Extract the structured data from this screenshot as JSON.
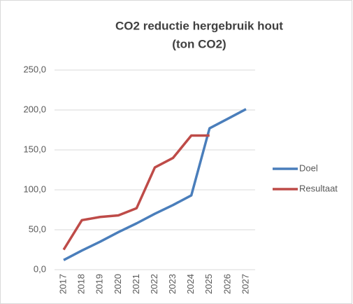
{
  "chart_data": {
    "type": "line",
    "title": [
      "CO2 reductie hergebruik hout",
      "(ton CO2)"
    ],
    "categories": [
      "2017",
      "2018",
      "2019",
      "2020",
      "2021",
      "2022",
      "2023",
      "2024",
      "2025",
      "2026",
      "2027"
    ],
    "series": [
      {
        "name": "Doel",
        "color": "#4a7ebb",
        "values": [
          12,
          24,
          35,
          47,
          58,
          70,
          81,
          93,
          177,
          189,
          201
        ]
      },
      {
        "name": "Resultaat",
        "color": "#be4b48",
        "values": [
          25,
          62,
          66,
          68,
          77,
          128,
          140,
          168,
          168,
          null,
          null
        ]
      }
    ],
    "ylim": [
      0,
      250
    ],
    "yticks": [
      {
        "value": 0,
        "label": "0,0"
      },
      {
        "value": 50,
        "label": "50,0"
      },
      {
        "value": 100,
        "label": "100,0"
      },
      {
        "value": 150,
        "label": "150,0"
      },
      {
        "value": 200,
        "label": "200,0"
      },
      {
        "value": 250,
        "label": "250,0"
      }
    ],
    "grid": true,
    "legend": "right"
  }
}
